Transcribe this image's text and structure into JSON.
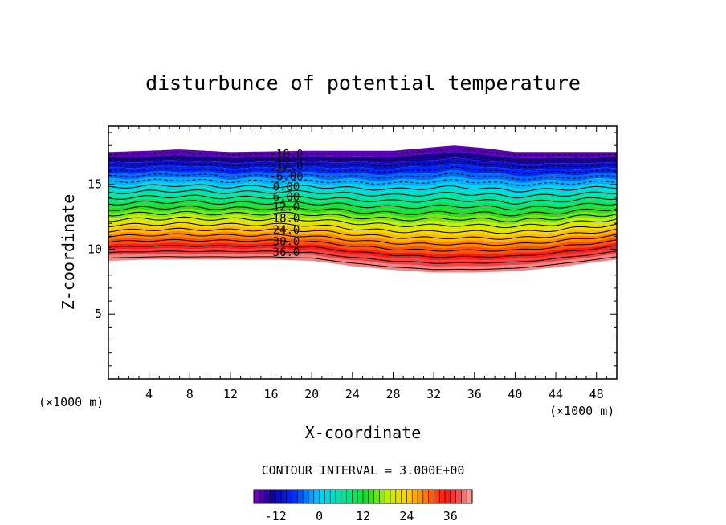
{
  "chart_data": {
    "type": "contour",
    "title": "disturbunce of potential temperature",
    "xlabel": "X-coordinate",
    "ylabel": "Z-coordinate",
    "x_unit_label_left": "(×1000 m)",
    "x_unit_label_right": "(×1000 m)",
    "x_ticks": [
      "4",
      "8",
      "12",
      "16",
      "20",
      "24",
      "28",
      "32",
      "36",
      "40",
      "44",
      "48"
    ],
    "y_ticks": [
      "5",
      "10",
      "15"
    ],
    "xlim": [
      0,
      50
    ],
    "ylim": [
      0,
      19.5
    ],
    "contour_interval_text": "CONTOUR INTERVAL = 3.000E+00",
    "contour_labels": [
      "-18.0",
      "-12.0",
      "-6.00",
      "0.00",
      "6.00",
      "12.0",
      "18.0",
      "24.0",
      "30.0",
      "36.0"
    ],
    "contour_levels": [
      -18,
      -15,
      -12,
      -9,
      -6,
      -3,
      0,
      3,
      6,
      9,
      12,
      15,
      18,
      21,
      24,
      27,
      30,
      33,
      36,
      39
    ],
    "colorbar_ticks": [
      "-12",
      "0",
      "12",
      "24",
      "36"
    ],
    "colorbar_range": [
      -18,
      42
    ],
    "top_boundary": [
      [
        0,
        17.5
      ],
      [
        4,
        17.6
      ],
      [
        7,
        17.7
      ],
      [
        12,
        17.5
      ],
      [
        20,
        17.6
      ],
      [
        28,
        17.6
      ],
      [
        31,
        17.8
      ],
      [
        34,
        18.0
      ],
      [
        37,
        17.8
      ],
      [
        40,
        17.5
      ],
      [
        50,
        17.5
      ]
    ],
    "bottom_boundary": [
      [
        0,
        9.1
      ],
      [
        4,
        9.2
      ],
      [
        8,
        9.2
      ],
      [
        16,
        9.2
      ],
      [
        20,
        9.1
      ],
      [
        24,
        8.7
      ],
      [
        28,
        8.4
      ],
      [
        32,
        8.2
      ],
      [
        36,
        8.2
      ],
      [
        40,
        8.3
      ],
      [
        44,
        8.6
      ],
      [
        48,
        9.0
      ],
      [
        50,
        9.2
      ]
    ],
    "level_heights_x0": {
      "-18": 17.5,
      "39": 9.1
    },
    "colors": {
      "purple": "#8000c8",
      "blue": "#0000ff",
      "cyan": "#00e0ff",
      "green": "#20e020",
      "yellow": "#f0f000",
      "orange": "#ff9000",
      "red": "#ff2020",
      "pink": "#f8a0a0"
    }
  }
}
